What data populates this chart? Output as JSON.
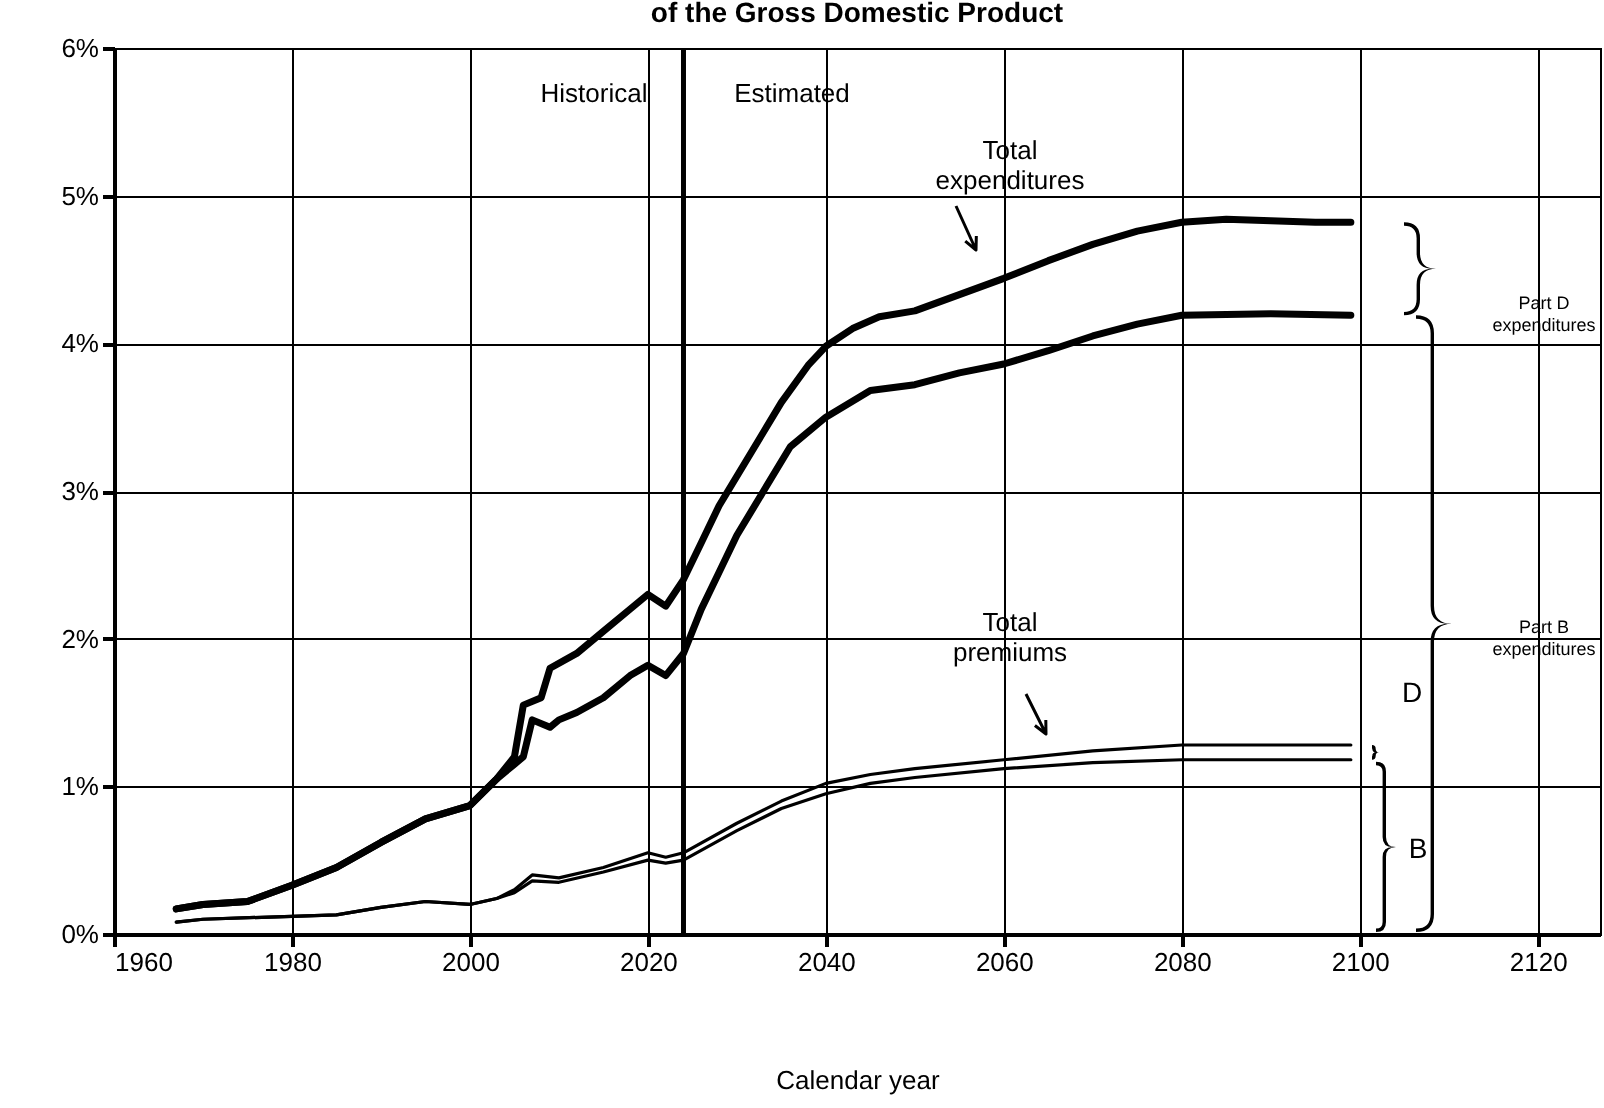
{
  "chart_data": {
    "type": "line",
    "title": "of the Gross Domestic Product",
    "xlabel": "Calendar year",
    "xlim": [
      1960,
      2127
    ],
    "xticks": [
      1960,
      1980,
      2000,
      2020,
      2040,
      2060,
      2080,
      2100,
      2120
    ],
    "ylim": [
      0,
      6
    ],
    "yticks": [
      {
        "value": 0,
        "label": "0%"
      },
      {
        "value": 1,
        "label": "1%"
      },
      {
        "value": 2,
        "label": "2%"
      },
      {
        "value": 3,
        "label": "3%"
      },
      {
        "value": 4,
        "label": "4%"
      },
      {
        "value": 5,
        "label": "5%"
      },
      {
        "value": 6,
        "label": "6%"
      }
    ],
    "grid": true,
    "series": [
      {
        "color": "#000000",
        "x": [
          1967,
          1970,
          1975,
          1980,
          1985,
          1990,
          1995,
          2000,
          2003,
          2005,
          2006,
          2008,
          2009,
          2012,
          2015,
          2018,
          2020,
          2022,
          2024,
          2026,
          2028,
          2030,
          2032,
          2035,
          2038,
          2040,
          2043,
          2046,
          2050,
          2055,
          2060,
          2065,
          2070,
          2075,
          2080,
          2085,
          2090,
          2095,
          2099
        ],
        "values": [
          0.17,
          0.2,
          0.22,
          0.33,
          0.45,
          0.62,
          0.78,
          0.87,
          1.05,
          1.2,
          1.55,
          1.6,
          1.8,
          1.9,
          2.05,
          2.2,
          2.3,
          2.22,
          2.4,
          2.65,
          2.9,
          3.1,
          3.3,
          3.6,
          3.85,
          3.98,
          4.1,
          4.18,
          4.22,
          4.33,
          4.44,
          4.56,
          4.67,
          4.76,
          4.82,
          4.84,
          4.83,
          4.82,
          4.82
        ]
      },
      {
        "color": "#000000",
        "x": [
          1967,
          1970,
          1975,
          1980,
          1985,
          1990,
          1995,
          2000,
          2003,
          2005,
          2006,
          2007,
          2009,
          2010,
          2012,
          2015,
          2018,
          2020,
          2022,
          2024,
          2026,
          2028,
          2030,
          2033,
          2036,
          2040,
          2045,
          2050,
          2055,
          2060,
          2065,
          2070,
          2075,
          2080,
          2090,
          2099
        ],
        "values": [
          0.17,
          0.2,
          0.22,
          0.33,
          0.45,
          0.62,
          0.78,
          0.87,
          1.05,
          1.15,
          1.2,
          1.45,
          1.4,
          1.45,
          1.5,
          1.6,
          1.75,
          1.82,
          1.75,
          1.9,
          2.2,
          2.45,
          2.7,
          3.0,
          3.3,
          3.5,
          3.68,
          3.72,
          3.8,
          3.86,
          3.95,
          4.05,
          4.13,
          4.19,
          4.2,
          4.19
        ]
      },
      {
        "color": "#000000",
        "x": [
          1967,
          1970,
          1980,
          1985,
          1990,
          1995,
          2000,
          2003,
          2005,
          2007,
          2010,
          2015,
          2020,
          2022,
          2024,
          2030,
          2035,
          2040,
          2045,
          2050,
          2060,
          2070,
          2080,
          2099
        ],
        "values": [
          0.08,
          0.1,
          0.12,
          0.13,
          0.18,
          0.22,
          0.2,
          0.24,
          0.3,
          0.4,
          0.38,
          0.45,
          0.55,
          0.52,
          0.55,
          0.75,
          0.9,
          1.02,
          1.08,
          1.12,
          1.18,
          1.24,
          1.28,
          1.28
        ]
      },
      {
        "color": "#000000",
        "x": [
          1967,
          1970,
          1980,
          1985,
          1990,
          1995,
          2000,
          2003,
          2005,
          2007,
          2010,
          2015,
          2020,
          2022,
          2024,
          2030,
          2035,
          2040,
          2045,
          2050,
          2060,
          2070,
          2080,
          2099
        ],
        "values": [
          0.08,
          0.1,
          0.12,
          0.13,
          0.18,
          0.22,
          0.2,
          0.24,
          0.28,
          0.36,
          0.35,
          0.42,
          0.5,
          0.48,
          0.5,
          0.7,
          0.85,
          0.95,
          1.02,
          1.06,
          1.12,
          1.16,
          1.18,
          1.18
        ]
      }
    ],
    "ref_lines": [
      {
        "axis": "x",
        "value": 2024,
        "color": "#000000"
      }
    ],
    "annotations": [
      "Historical",
      "Estimated",
      "Total expenditures",
      "Total premiums",
      "Part D expenditures",
      "Part B expenditures",
      "D",
      "B"
    ]
  }
}
